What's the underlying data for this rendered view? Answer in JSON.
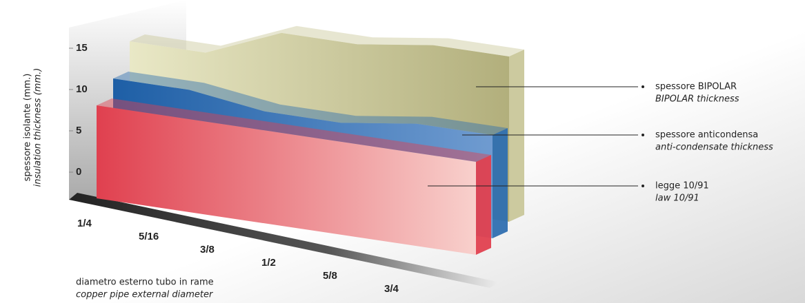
{
  "chart_data": {
    "type": "area3d",
    "y_label": [
      "spessore isolante (mm.)",
      "insulation thickness (mm.)"
    ],
    "x_label": [
      "diametro esterno tubo in rame",
      "copper pipe external diameter"
    ],
    "categories": [
      "1/4",
      "5/16",
      "3/8",
      "1/2",
      "5/8",
      "3/4"
    ],
    "ylim": [
      0,
      20
    ],
    "yticks": [
      0,
      5,
      10,
      15
    ],
    "series": [
      {
        "name": "legge 10/91",
        "name_en": "law 10/91",
        "color": "#e0404f",
        "values": [
          9,
          9,
          9,
          9,
          9,
          9
        ]
      },
      {
        "name": "spessore anticondensa",
        "name_en": "anti-condensate thickness",
        "color": "#2f6fb0",
        "values": [
          10,
          10,
          9,
          9,
          10,
          10
        ]
      },
      {
        "name": "spessore BIPOLAR",
        "name_en": "BIPOLAR thickness",
        "color": "#c9c79a",
        "values": [
          12,
          12,
          15,
          15,
          16,
          16
        ]
      }
    ]
  }
}
